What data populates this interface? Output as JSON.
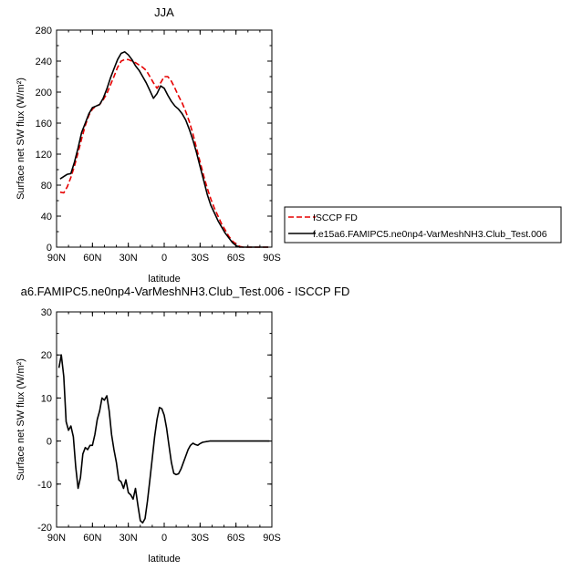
{
  "chart_data": [
    {
      "type": "line",
      "title": "JJA",
      "xlabel": "latitude",
      "ylabel": "Surface net SW flux (W/m²)",
      "x_ticks": [
        "90N",
        "60N",
        "30N",
        "0",
        "30S",
        "60S",
        "90S"
      ],
      "y_ticks": [
        "0",
        "40",
        "80",
        "120",
        "160",
        "200",
        "240",
        "280"
      ],
      "xlim": [
        90,
        -90
      ],
      "ylim": [
        0,
        280
      ],
      "grid": false,
      "legend_position": "right",
      "x": [
        87,
        84,
        81,
        78,
        75,
        72,
        69,
        66,
        63,
        60,
        57,
        54,
        51,
        48,
        45,
        42,
        39,
        36,
        33,
        30,
        27,
        24,
        21,
        18,
        15,
        12,
        9,
        6,
        3,
        0,
        -3,
        -6,
        -9,
        -12,
        -15,
        -18,
        -21,
        -24,
        -27,
        -30,
        -33,
        -36,
        -39,
        -42,
        -45,
        -48,
        -51,
        -54,
        -57,
        -60,
        -63,
        -66,
        -69,
        -72,
        -75,
        -78,
        -81,
        -84,
        -87
      ],
      "series": [
        {
          "name": "ISCCP FD",
          "color": "#e60000",
          "dash": "dashed",
          "values": [
            71,
            70,
            78,
            90,
            105,
            122,
            140,
            157,
            170,
            178,
            182,
            184,
            190,
            198,
            209,
            220,
            232,
            240,
            242,
            242,
            240,
            238,
            235,
            232,
            228,
            220,
            212,
            205,
            212,
            220,
            220,
            214,
            205,
            195,
            186,
            175,
            162,
            146,
            128,
            110,
            92,
            76,
            62,
            50,
            40,
            30,
            22,
            14,
            8,
            4,
            1,
            0,
            0,
            0,
            0,
            0,
            0,
            0,
            0
          ]
        },
        {
          "name": "f.e15a6.FAMIPC5.ne0np4-VarMeshNH3.Club_Test.006",
          "color": "#000000",
          "dash": "solid",
          "values": [
            88,
            91,
            94,
            95,
            110,
            128,
            148,
            160,
            172,
            180,
            182,
            184,
            192,
            204,
            218,
            230,
            242,
            250,
            252,
            248,
            242,
            234,
            228,
            220,
            212,
            202,
            192,
            198,
            208,
            205,
            196,
            188,
            182,
            178,
            172,
            164,
            152,
            138,
            122,
            104,
            86,
            68,
            54,
            44,
            34,
            26,
            18,
            12,
            6,
            2,
            0,
            0,
            0,
            0,
            0,
            0,
            0,
            0,
            0
          ]
        }
      ]
    },
    {
      "type": "line",
      "title": "a6.FAMIPC5.ne0np4-VarMeshNH3.Club_Test.006 - ISCCP FD",
      "xlabel": "latitude",
      "ylabel": "Surface net SW flux (W/m²)",
      "x_ticks": [
        "90N",
        "60N",
        "30N",
        "0",
        "30S",
        "60S",
        "90S"
      ],
      "y_ticks": [
        "-20",
        "-10",
        "0",
        "10",
        "20",
        "30"
      ],
      "xlim": [
        90,
        -90
      ],
      "ylim": [
        -20,
        30
      ],
      "grid": false,
      "x": [
        88,
        86,
        84,
        82,
        80,
        78,
        76,
        74,
        72,
        70,
        68,
        66,
        64,
        62,
        60,
        58,
        56,
        54,
        52,
        50,
        48,
        46,
        44,
        42,
        40,
        38,
        36,
        34,
        32,
        30,
        28,
        26,
        24,
        22,
        20,
        18,
        16,
        14,
        12,
        10,
        8,
        6,
        4,
        2,
        0,
        -2,
        -4,
        -6,
        -8,
        -10,
        -12,
        -14,
        -16,
        -18,
        -20,
        -22,
        -24,
        -26,
        -28,
        -30,
        -32,
        -34,
        -36,
        -38,
        -40,
        -42,
        -44,
        -46,
        -48,
        -50,
        -52,
        -54,
        -56,
        -58,
        -60,
        -62,
        -64,
        -66,
        -68,
        -70,
        -72,
        -74,
        -76,
        -78,
        -80,
        -82,
        -84,
        -86,
        -88
      ],
      "series": [
        {
          "name": "",
          "color": "#000000",
          "dash": "solid",
          "values": [
            17,
            20,
            15,
            4.5,
            2.5,
            3.5,
            1,
            -6,
            -11,
            -8.5,
            -3,
            -1.5,
            -2,
            -1,
            -1,
            1.5,
            5,
            7,
            10,
            9.5,
            10.5,
            7,
            1.5,
            -2,
            -5,
            -9,
            -9.5,
            -11,
            -9,
            -12,
            -12.5,
            -13.5,
            -11,
            -15,
            -18.5,
            -19,
            -18,
            -14,
            -9,
            -4,
            1,
            5,
            7.8,
            7.5,
            6,
            3,
            -1,
            -5,
            -7.5,
            -7.8,
            -7.6,
            -6.5,
            -5,
            -3.5,
            -2,
            -1,
            -0.5,
            -0.8,
            -1,
            -0.6,
            -0.3,
            -0.2,
            -0.1,
            0,
            0,
            0,
            0,
            0,
            0,
            0,
            0,
            0,
            0,
            0,
            0,
            0,
            0,
            0,
            0,
            0,
            0,
            0,
            0,
            0,
            0,
            0,
            0,
            0,
            0
          ]
        }
      ]
    }
  ]
}
